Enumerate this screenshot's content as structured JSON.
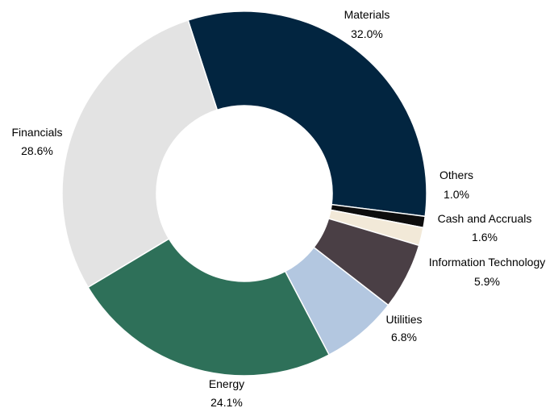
{
  "chart_data": {
    "type": "pie",
    "donut": true,
    "start": "12 o'clock-left, clockwise",
    "categories": [
      "Materials",
      "Others",
      "Cash and Accruals",
      "Information Technology",
      "Utilities",
      "Energy",
      "Financials"
    ],
    "values": [
      32.0,
      1.0,
      1.6,
      5.9,
      6.8,
      24.1,
      28.6
    ],
    "value_labels": [
      "32.0%",
      "1.0%",
      "1.6%",
      "5.9%",
      "6.8%",
      "24.1%",
      "28.6%"
    ],
    "colors": [
      "#022540",
      "#0d0d0d",
      "#f2e9d8",
      "#4a3f45",
      "#b3c7e0",
      "#2e7059",
      "#e3e3e3"
    ],
    "title": "",
    "legend": "none"
  }
}
